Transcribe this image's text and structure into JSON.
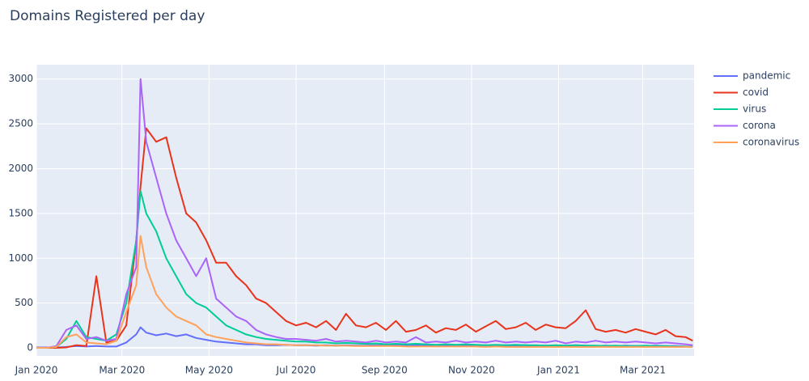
{
  "chart_data": {
    "type": "line",
    "title": "Domains Registered per day",
    "x": [
      "2020-01-01",
      "2020-01-08",
      "2020-01-15",
      "2020-01-22",
      "2020-01-29",
      "2020-02-05",
      "2020-02-12",
      "2020-02-19",
      "2020-02-26",
      "2020-03-04",
      "2020-03-11",
      "2020-03-14",
      "2020-03-18",
      "2020-03-25",
      "2020-04-01",
      "2020-04-08",
      "2020-04-15",
      "2020-04-22",
      "2020-04-29",
      "2020-05-06",
      "2020-05-13",
      "2020-05-20",
      "2020-05-27",
      "2020-06-03",
      "2020-06-10",
      "2020-06-17",
      "2020-06-24",
      "2020-07-01",
      "2020-07-08",
      "2020-07-15",
      "2020-07-22",
      "2020-07-29",
      "2020-08-05",
      "2020-08-12",
      "2020-08-19",
      "2020-08-26",
      "2020-09-02",
      "2020-09-09",
      "2020-09-16",
      "2020-09-23",
      "2020-09-30",
      "2020-10-07",
      "2020-10-14",
      "2020-10-21",
      "2020-10-28",
      "2020-11-04",
      "2020-11-11",
      "2020-11-18",
      "2020-11-25",
      "2020-12-02",
      "2020-12-09",
      "2020-12-16",
      "2020-12-23",
      "2020-12-30",
      "2021-01-06",
      "2021-01-13",
      "2021-01-20",
      "2021-01-27",
      "2021-02-03",
      "2021-02-10",
      "2021-02-17",
      "2021-02-24",
      "2021-03-03",
      "2021-03-10",
      "2021-03-17",
      "2021-03-24",
      "2021-03-31",
      "2021-04-05"
    ],
    "series": [
      {
        "name": "pandemic",
        "color": "#636efa",
        "values": [
          5,
          5,
          5,
          10,
          20,
          15,
          20,
          15,
          15,
          60,
          150,
          230,
          170,
          140,
          160,
          130,
          150,
          110,
          90,
          70,
          60,
          50,
          40,
          40,
          30,
          30,
          35,
          30,
          30,
          25,
          30,
          25,
          30,
          25,
          25,
          30,
          25,
          30,
          25,
          30,
          25,
          30,
          30,
          25,
          30,
          25,
          30,
          25,
          30,
          25,
          30,
          20,
          25,
          20,
          25,
          30,
          25,
          20,
          25,
          20,
          25,
          20,
          20,
          25,
          20,
          20,
          15,
          15
        ]
      },
      {
        "name": "covid",
        "color": "#e8341c",
        "values": [
          0,
          0,
          0,
          5,
          30,
          20,
          800,
          60,
          80,
          250,
          1200,
          1800,
          2450,
          2300,
          2350,
          1900,
          1500,
          1400,
          1200,
          950,
          950,
          800,
          700,
          550,
          500,
          400,
          300,
          250,
          280,
          230,
          300,
          200,
          380,
          250,
          230,
          280,
          200,
          300,
          180,
          200,
          250,
          170,
          220,
          200,
          260,
          180,
          240,
          300,
          210,
          230,
          280,
          200,
          260,
          230,
          220,
          300,
          420,
          210,
          180,
          200,
          170,
          210,
          180,
          150,
          200,
          130,
          120,
          80
        ]
      },
      {
        "name": "virus",
        "color": "#00cc96",
        "values": [
          0,
          0,
          10,
          100,
          300,
          120,
          100,
          80,
          150,
          500,
          1200,
          1750,
          1500,
          1300,
          1000,
          800,
          600,
          500,
          450,
          350,
          250,
          200,
          150,
          120,
          100,
          90,
          80,
          70,
          70,
          60,
          60,
          50,
          55,
          50,
          45,
          50,
          40,
          45,
          40,
          45,
          40,
          35,
          40,
          35,
          40,
          35,
          30,
          35,
          30,
          35,
          30,
          30,
          25,
          30,
          25,
          30,
          25,
          25,
          20,
          25,
          20,
          20,
          25,
          20,
          20,
          15,
          15,
          10
        ]
      },
      {
        "name": "corona",
        "color": "#ab63fa",
        "values": [
          0,
          0,
          20,
          200,
          250,
          100,
          120,
          80,
          100,
          600,
          900,
          3000,
          2300,
          1900,
          1500,
          1200,
          1000,
          800,
          1000,
          550,
          450,
          350,
          300,
          200,
          150,
          120,
          100,
          100,
          90,
          80,
          100,
          70,
          80,
          70,
          60,
          80,
          60,
          70,
          60,
          120,
          60,
          70,
          60,
          80,
          60,
          70,
          60,
          80,
          60,
          70,
          60,
          70,
          60,
          80,
          50,
          70,
          60,
          80,
          60,
          70,
          60,
          70,
          60,
          50,
          60,
          50,
          40,
          30
        ]
      },
      {
        "name": "coronavirus",
        "color": "#ffa15a",
        "values": [
          0,
          0,
          10,
          120,
          150,
          60,
          50,
          40,
          80,
          400,
          700,
          1250,
          900,
          600,
          450,
          350,
          300,
          250,
          150,
          120,
          100,
          80,
          60,
          50,
          40,
          40,
          35,
          30,
          30,
          30,
          25,
          25,
          25,
          20,
          20,
          20,
          20,
          20,
          15,
          15,
          15,
          15,
          15,
          15,
          15,
          15,
          10,
          15,
          10,
          10,
          10,
          10,
          10,
          10,
          10,
          10,
          10,
          10,
          10,
          10,
          10,
          10,
          10,
          10,
          10,
          10,
          10,
          10
        ]
      }
    ],
    "xlim": [
      "2020-01-01",
      "2021-04-06"
    ],
    "xticks": [
      {
        "value": "2020-01-01",
        "label": "Jan 2020"
      },
      {
        "value": "2020-03-01",
        "label": "Mar 2020"
      },
      {
        "value": "2020-05-01",
        "label": "May 2020"
      },
      {
        "value": "2020-07-01",
        "label": "Jul 2020"
      },
      {
        "value": "2020-09-01",
        "label": "Sep 2020"
      },
      {
        "value": "2020-11-01",
        "label": "Nov 2020"
      },
      {
        "value": "2021-01-01",
        "label": "Jan 2021"
      },
      {
        "value": "2021-03-01",
        "label": "Mar 2021"
      }
    ],
    "ylim": [
      -90,
      3160
    ],
    "yticks": [
      0,
      500,
      1000,
      1500,
      2000,
      2500,
      3000
    ],
    "grid": true,
    "legend": "right"
  }
}
